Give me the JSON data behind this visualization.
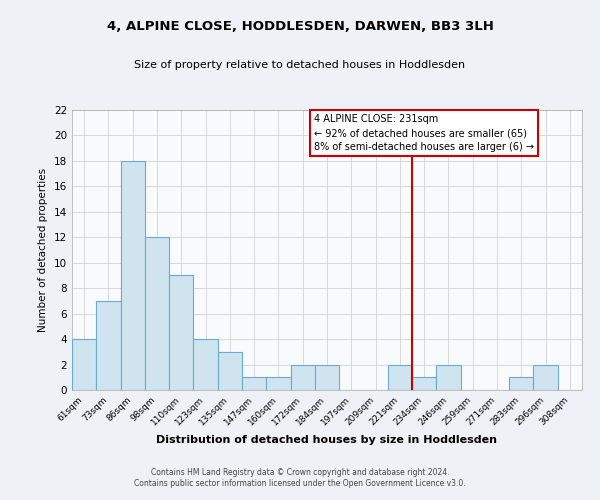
{
  "title": "4, ALPINE CLOSE, HODDLESDEN, DARWEN, BB3 3LH",
  "subtitle": "Size of property relative to detached houses in Hoddlesden",
  "xlabel": "Distribution of detached houses by size in Hoddlesden",
  "ylabel": "Number of detached properties",
  "bin_labels": [
    "61sqm",
    "73sqm",
    "86sqm",
    "98sqm",
    "110sqm",
    "123sqm",
    "135sqm",
    "147sqm",
    "160sqm",
    "172sqm",
    "184sqm",
    "197sqm",
    "209sqm",
    "221sqm",
    "234sqm",
    "246sqm",
    "259sqm",
    "271sqm",
    "283sqm",
    "296sqm",
    "308sqm"
  ],
  "bar_heights": [
    4,
    7,
    18,
    12,
    9,
    4,
    3,
    1,
    1,
    2,
    2,
    0,
    0,
    2,
    1,
    2,
    0,
    0,
    1,
    2,
    0
  ],
  "bar_color": "#d0e4f0",
  "bar_edge_color": "#6aaad4",
  "ylim": [
    0,
    22
  ],
  "yticks": [
    0,
    2,
    4,
    6,
    8,
    10,
    12,
    14,
    16,
    18,
    20,
    22
  ],
  "vline_x_idx": 13.5,
  "vline_color": "#cc0000",
  "annotation_title": "4 ALPINE CLOSE: 231sqm",
  "annotation_line1": "← 92% of detached houses are smaller (65)",
  "annotation_line2": "8% of semi-detached houses are larger (6) →",
  "annotation_box_color": "#ffffff",
  "annotation_box_edge": "#cc0000",
  "footer_line1": "Contains HM Land Registry data © Crown copyright and database right 2024.",
  "footer_line2": "Contains public sector information licensed under the Open Government Licence v3.0.",
  "background_color": "#eef2f7",
  "plot_background": "#f8fafc",
  "grid_color": "#cccccc",
  "spine_color": "#aaaaaa"
}
